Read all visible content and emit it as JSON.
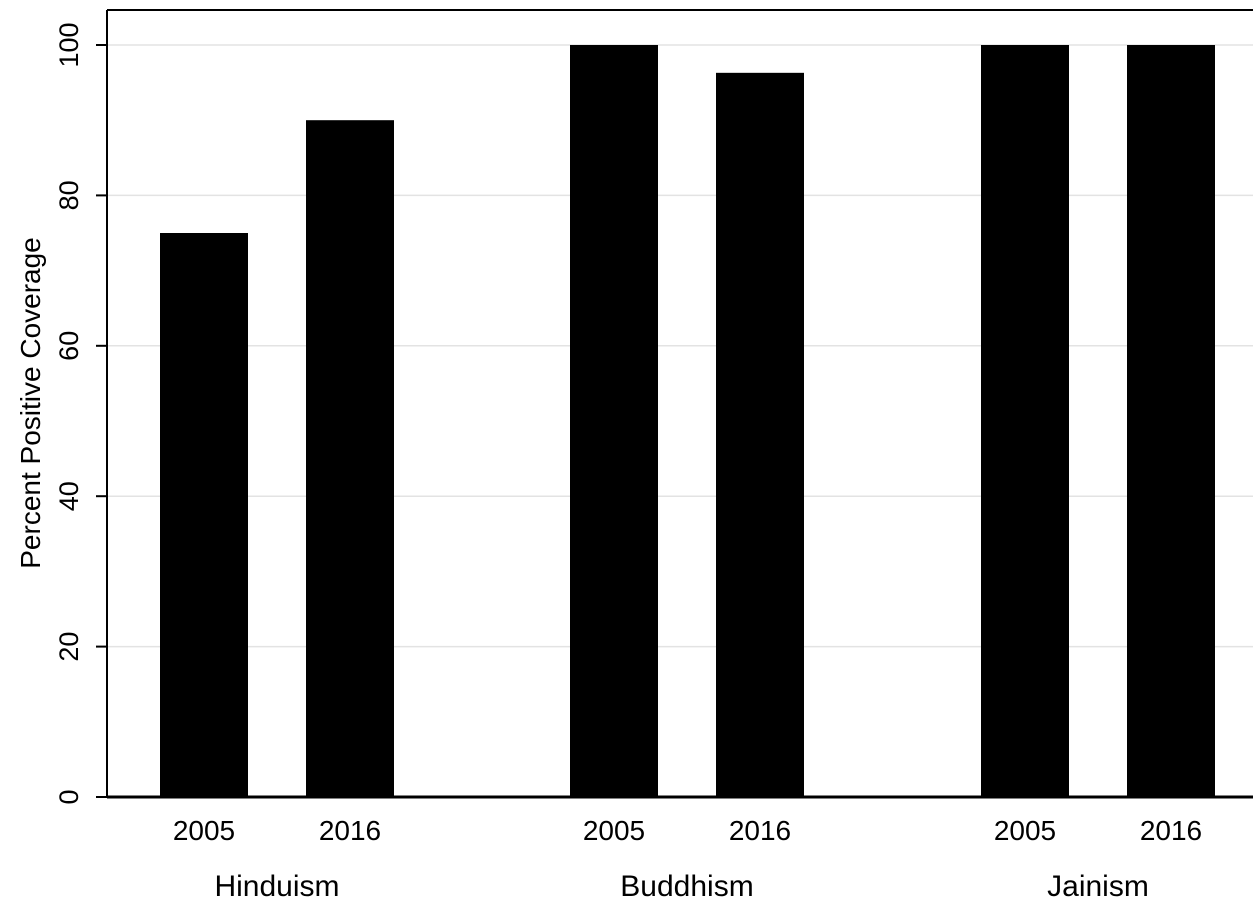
{
  "chart_data": {
    "type": "bar",
    "title": "",
    "ylabel": "Percent Positive Coverage",
    "xlabel": "",
    "ylim": [
      0,
      100
    ],
    "yticks": [
      0,
      20,
      40,
      60,
      80,
      100
    ],
    "grid": true,
    "legend": "none",
    "bar_color": "#000000",
    "grid_color": "#e3e3e3",
    "groups": [
      {
        "label": "Hinduism",
        "bars": [
          {
            "label": "2005",
            "value": 75
          },
          {
            "label": "2016",
            "value": 90
          }
        ]
      },
      {
        "label": "Buddhism",
        "bars": [
          {
            "label": "2005",
            "value": 100
          },
          {
            "label": "2016",
            "value": 96.3
          }
        ]
      },
      {
        "label": "Jainism",
        "bars": [
          {
            "label": "2005",
            "value": 100
          },
          {
            "label": "2016",
            "value": 100
          }
        ]
      }
    ]
  }
}
